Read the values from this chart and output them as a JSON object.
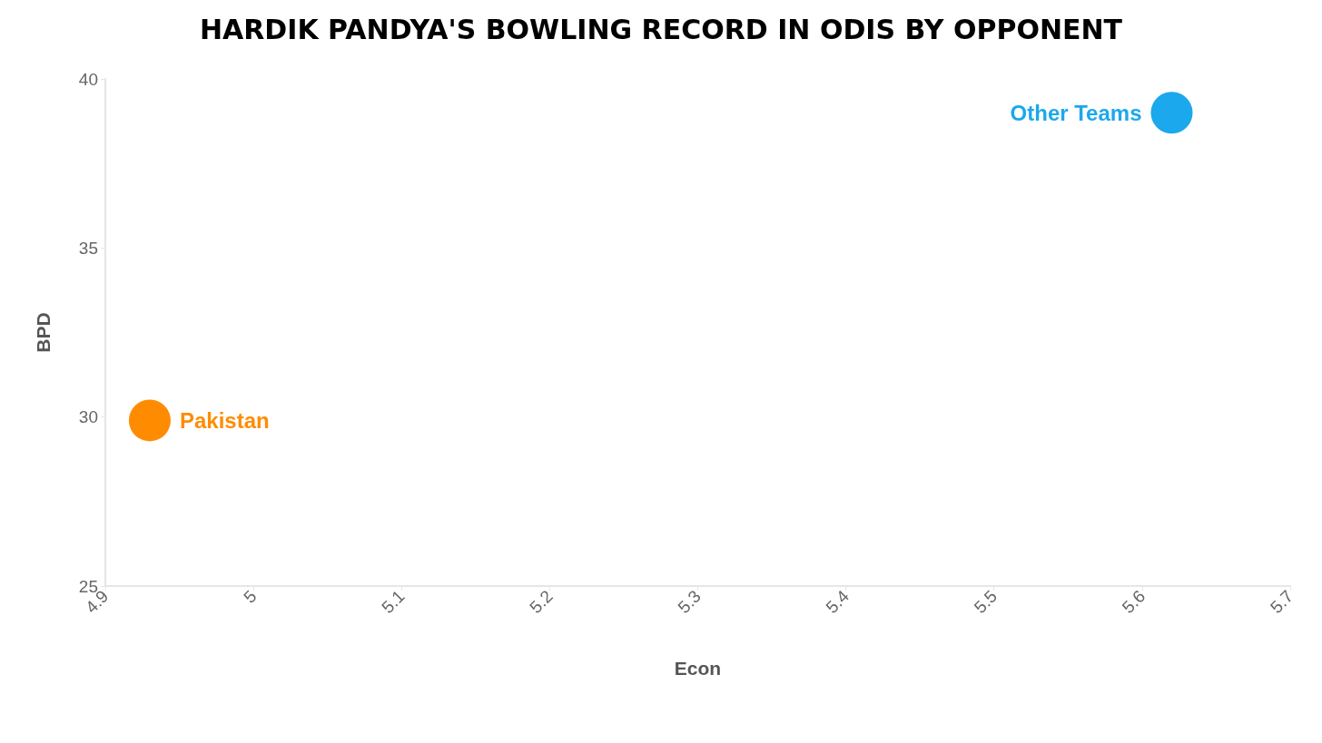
{
  "chart_data": {
    "type": "scatter",
    "title": "HARDIK PANDYA'S BOWLING RECORD IN ODIS BY OPPONENT",
    "xlabel": "Econ",
    "ylabel": "BPD",
    "series": [
      {
        "name": "Pakistan",
        "color": "#ff8c00",
        "x": [
          4.93
        ],
        "values": [
          29.9
        ]
      },
      {
        "name": "Other Teams",
        "color": "#1ca8ec",
        "x": [
          5.62
        ],
        "values": [
          39.0
        ]
      }
    ],
    "xlim": [
      4.9,
      5.7
    ],
    "xticks": [
      4.9,
      5,
      5.1,
      5.2,
      5.3,
      5.4,
      5.5,
      5.6,
      5.7
    ],
    "ylim": [
      25,
      40
    ],
    "yticks": [
      25,
      30,
      35,
      40
    ],
    "grid": false,
    "legend": false,
    "marker": "circle"
  }
}
